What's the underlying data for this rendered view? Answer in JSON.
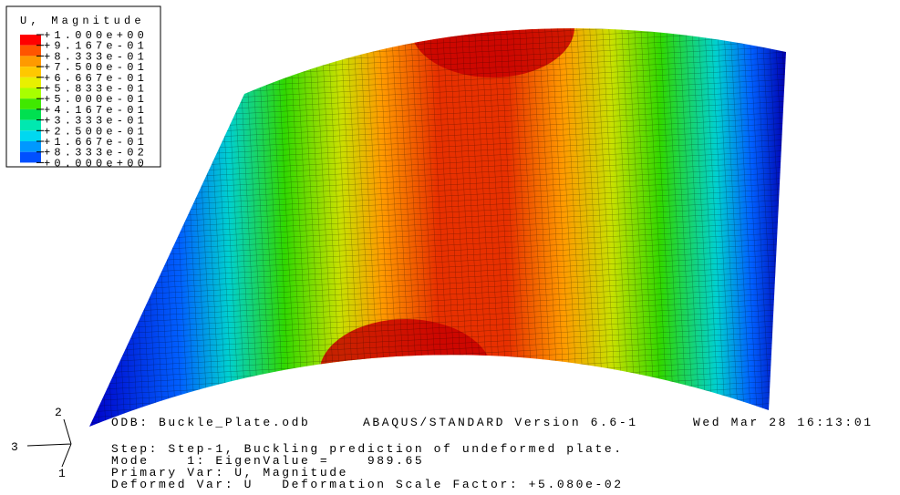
{
  "legend": {
    "title": "U, Magnitude",
    "labels": [
      "+1.000e+00",
      "+9.167e-01",
      "+8.333e-01",
      "+7.500e-01",
      "+6.667e-01",
      "+5.833e-01",
      "+5.000e-01",
      "+4.167e-01",
      "+3.333e-01",
      "+2.500e-01",
      "+1.667e-01",
      "+8.333e-02",
      "+0.000e+00"
    ],
    "colors": [
      "#ff0000",
      "#ff5500",
      "#ff9a00",
      "#ffc800",
      "#e8f000",
      "#a8ff00",
      "#40e800",
      "#00e050",
      "#00e8b0",
      "#00d8f0",
      "#0098ff",
      "#0050ff",
      "#0000ff"
    ]
  },
  "info": {
    "odb": "ODB: Buckle_Plate.odb",
    "version": "ABAQUS/STANDARD Version 6.6-1",
    "date": "Wed Mar 28 16:13:01",
    "step": "Step: Step-1, Buckling prediction of undeformed plate.",
    "mode": "Mode    1: EigenValue =    989.65",
    "primary": "Primary Var: U, Magnitude",
    "deformed": "Deformed Var: U   Deformation Scale Factor: +5.080e-02"
  },
  "triad": {
    "axis2": "2",
    "axis3": "3",
    "axis1": "1"
  }
}
